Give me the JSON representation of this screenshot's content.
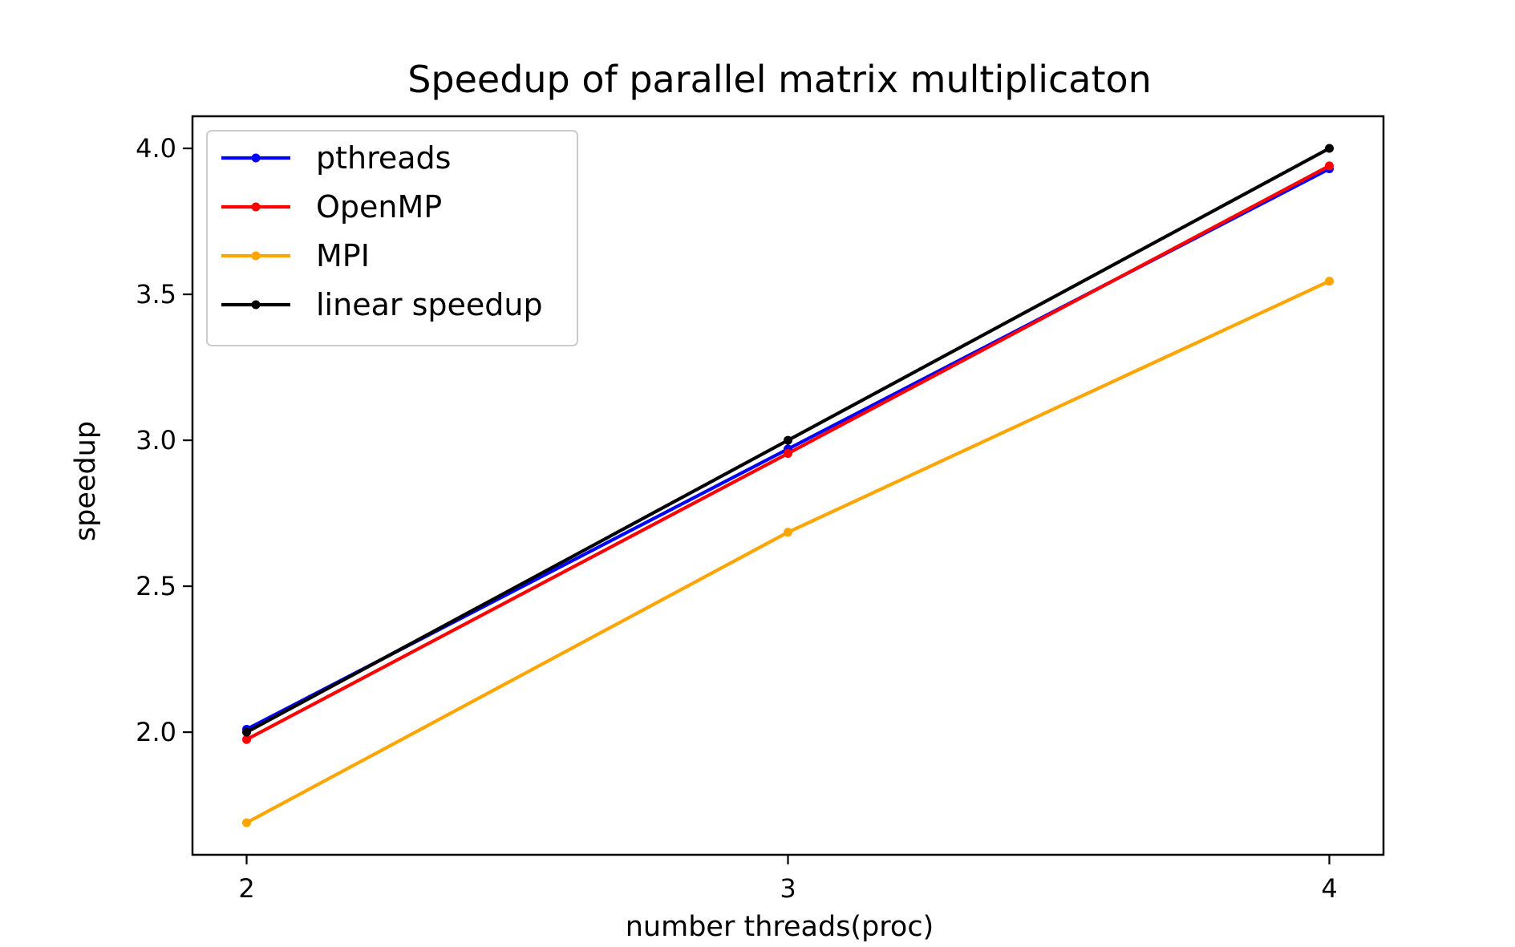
{
  "chart_data": {
    "type": "line",
    "title": "Speedup of parallel matrix multiplicaton",
    "xlabel": "number threads(proc)",
    "ylabel": "speedup",
    "x": [
      2,
      3,
      4
    ],
    "xticks": [
      2,
      3,
      4
    ],
    "xtick_labels": [
      "2",
      "3",
      "4"
    ],
    "yticks": [
      2.0,
      2.5,
      3.0,
      3.5,
      4.0
    ],
    "ytick_labels": [
      "2.0",
      "2.5",
      "3.0",
      "3.5",
      "4.0"
    ],
    "xlim": [
      1.9,
      4.1
    ],
    "ylim": [
      1.58,
      4.11
    ],
    "grid": false,
    "legend_position": "upper left",
    "series": [
      {
        "name": "pthreads",
        "color": "#0000ff",
        "values": [
          2.01,
          2.97,
          3.93
        ]
      },
      {
        "name": "OpenMP",
        "color": "#ff0000",
        "values": [
          1.975,
          2.955,
          3.94
        ]
      },
      {
        "name": "MPI",
        "color": "#ffa500",
        "values": [
          1.69,
          2.685,
          3.545
        ]
      },
      {
        "name": "linear speedup",
        "color": "#000000",
        "values": [
          2.0,
          3.0,
          4.0
        ]
      }
    ]
  }
}
